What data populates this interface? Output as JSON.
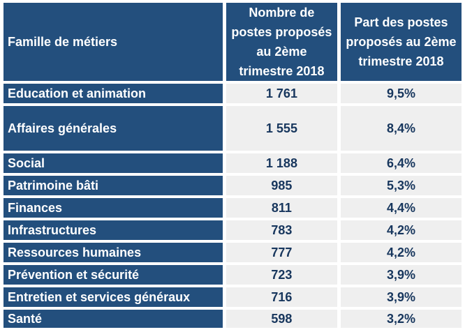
{
  "table": {
    "headers": {
      "family": "Famille de métiers",
      "count": "Nombre de\npostes proposés\nau 2ème\ntrimestre 2018",
      "share": "Part des postes\nproposés au 2ème\ntrimestre 2018"
    },
    "rows": [
      {
        "label": "Education et animation",
        "count": "1 761",
        "share": "9,5%"
      },
      {
        "label": "Affaires générales",
        "count": "1 555",
        "share": "8,4%"
      },
      {
        "label": "Social",
        "count": "1 188",
        "share": "6,4%"
      },
      {
        "label": "Patrimoine bâti",
        "count": "985",
        "share": "5,3%"
      },
      {
        "label": "Finances",
        "count": "811",
        "share": "4,4%"
      },
      {
        "label": "Infrastructures",
        "count": "783",
        "share": "4,2%"
      },
      {
        "label": "Ressources humaines",
        "count": "777",
        "share": "4,2%"
      },
      {
        "label": "Prévention et sécurité",
        "count": "723",
        "share": "3,9%"
      },
      {
        "label": "Entretien et services généraux",
        "count": "716",
        "share": "3,9%"
      },
      {
        "label": "Santé",
        "count": "598",
        "share": "3,2%"
      }
    ],
    "colors": {
      "header_background": "#234f7d",
      "header_text": "#ffffff",
      "cell_background": "#efefef",
      "cell_text": "#17365d",
      "grid_gap": "#ffffff"
    }
  }
}
